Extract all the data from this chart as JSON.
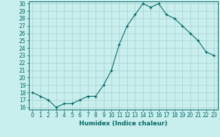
{
  "x": [
    0,
    1,
    2,
    3,
    4,
    5,
    6,
    7,
    8,
    9,
    10,
    11,
    12,
    13,
    14,
    15,
    16,
    17,
    18,
    19,
    20,
    21,
    22,
    23
  ],
  "y": [
    18,
    17.5,
    17,
    16,
    16.5,
    16.5,
    17,
    17.5,
    17.5,
    19,
    21,
    24.5,
    27,
    28.5,
    30,
    29.5,
    30,
    28.5,
    28,
    27,
    26,
    25,
    23.5,
    23
  ],
  "line_color": "#006666",
  "marker": "+",
  "bg_color": "#c8eeed",
  "grid_color": "#aad4d3",
  "xlabel": "Humidex (Indice chaleur)",
  "ylim": [
    16,
    30
  ],
  "xlim": [
    -0.5,
    23.5
  ],
  "yticks": [
    16,
    17,
    18,
    19,
    20,
    21,
    22,
    23,
    24,
    25,
    26,
    27,
    28,
    29,
    30
  ],
  "xticks": [
    0,
    1,
    2,
    3,
    4,
    5,
    6,
    7,
    8,
    9,
    10,
    11,
    12,
    13,
    14,
    15,
    16,
    17,
    18,
    19,
    20,
    21,
    22,
    23
  ],
  "tick_label_fontsize": 5.5,
  "xlabel_fontsize": 6.5,
  "axis_color": "#006666",
  "marker_size": 3,
  "line_width": 0.8
}
